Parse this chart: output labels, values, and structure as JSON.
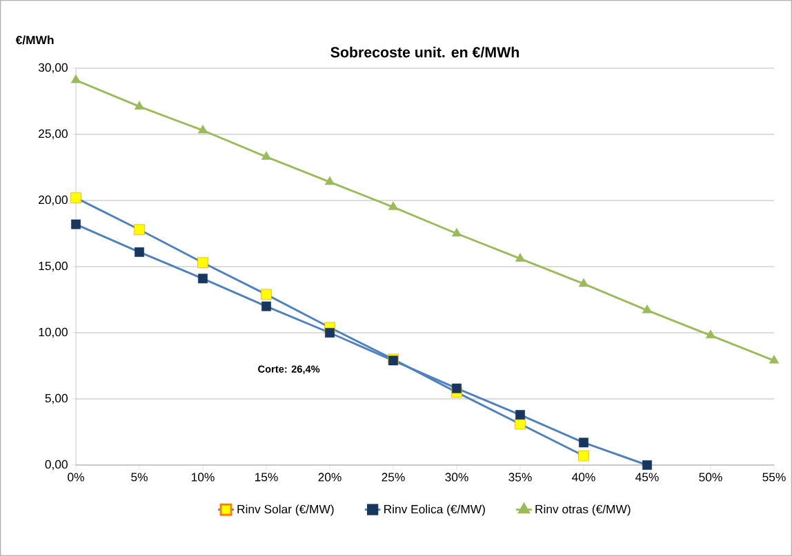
{
  "chart_data": {
    "type": "line",
    "title": "Sobrecoste unit. en €/MWh",
    "ylabel": "€/MWh",
    "categories": [
      "0%",
      "5%",
      "10%",
      "15%",
      "20%",
      "25%",
      "30%",
      "35%",
      "40%",
      "45%",
      "50%",
      "55%"
    ],
    "series": [
      {
        "name": "Rinv Solar  (€/MW)",
        "color": "#4f81bd",
        "marker": "square",
        "colors": [
          "#ffff00",
          "#ffff00",
          "#ffff00",
          "#ffff00",
          "#ffff00",
          "#ffff00",
          "#ffff00",
          "#ffff00",
          "#ffff00",
          "#ffff00",
          "#ffff00",
          "#ffff00"
        ],
        "values": [
          20.2,
          17.8,
          15.3,
          12.9,
          10.4,
          8.0,
          5.5,
          3.1,
          0.7,
          null,
          null,
          null
        ]
      },
      {
        "name": "Rinv Eolica  (€/MW)",
        "color": "#4f81bd",
        "marker": "square",
        "colors": [
          "#17375e",
          "#17375e",
          "#17375e",
          "#17375e",
          "#17375e",
          "#17375e",
          "#17375e",
          "#17375e",
          "#17375e",
          "#17375e",
          "#17375e",
          "#17375e"
        ],
        "values": [
          18.2,
          16.1,
          14.1,
          12.0,
          10.0,
          7.9,
          5.8,
          3.8,
          1.7,
          0.0,
          null,
          null
        ]
      },
      {
        "name": "Rinv otras  (€/MW)",
        "color": "#9bbb59",
        "marker": "triangle",
        "colors": [
          "#9bbb59",
          "#9bbb59",
          "#9bbb59",
          "#9bbb59",
          "#9bbb59",
          "#9bbb59",
          "#9bbb59",
          "#9bbb59",
          "#9bbb59",
          "#9bbb59",
          "#9bbb59",
          "#9bbb59"
        ],
        "values": [
          29.1,
          27.1,
          25.3,
          23.3,
          21.4,
          19.5,
          17.5,
          15.6,
          13.7,
          11.7,
          9.8,
          7.9
        ]
      }
    ],
    "ylim": [
      0,
      30
    ],
    "yticks": [
      {
        "value": 0,
        "label": "0,00"
      },
      {
        "value": 5,
        "label": "5,00"
      },
      {
        "value": 10,
        "label": "10,00"
      },
      {
        "value": 15,
        "label": "15,00"
      },
      {
        "value": 20,
        "label": "20,00"
      },
      {
        "value": 25,
        "label": "25,00"
      },
      {
        "value": 30,
        "label": "30,00"
      }
    ],
    "grid": "y",
    "legend": "bottom",
    "line_style": "solid",
    "annotations": [
      "Corte: 26,4%"
    ]
  }
}
